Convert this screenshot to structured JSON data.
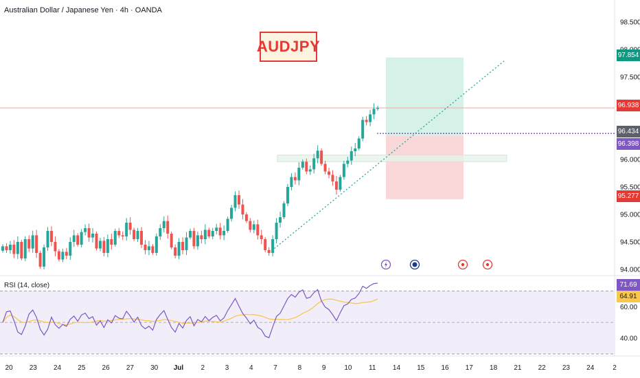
{
  "header": {
    "title": "Australian Dollar / Japanese Yen · 4h · OANDA"
  },
  "badge": {
    "text": "AUDJPY"
  },
  "indicator": {
    "label": "RSI (14, close)"
  },
  "price_tags": {
    "target": "97.854",
    "current": "96.938",
    "level1": "96.434",
    "level2": "96.398",
    "stop": "95.277"
  },
  "rsi_tags": {
    "rsi": "71.69",
    "ma": "64.91"
  },
  "colors": {
    "up": "#26a69a",
    "down": "#ef5350",
    "rsi_line": "#7e57c2",
    "rsi_ma": "#f9c74f",
    "profit_zone": "#d1efe5",
    "loss_zone": "#fad4d6",
    "trend_line": "#26a69a"
  },
  "chart_data": [
    {
      "type": "candlestick",
      "title": "Australian Dollar / Japanese Yen · 4h · OANDA",
      "x_axis_labels": [
        "20",
        "23",
        "24",
        "25",
        "26",
        "27",
        "30",
        "Jul",
        "2",
        "3",
        "4",
        "7",
        "8",
        "9",
        "10",
        "11",
        "14",
        "15",
        "16",
        "17",
        "18",
        "21",
        "22",
        "23",
        "24",
        "2"
      ],
      "y_ticks": [
        94.0,
        94.5,
        95.0,
        95.5,
        96.0,
        96.5,
        97.0,
        97.5,
        98.0,
        98.5
      ],
      "y_tick_labels": [
        "94.000",
        "94.500",
        "95.000",
        "95.500",
        "96.000",
        "96.500",
        "97.000",
        "97.500",
        "98.000",
        "98.500"
      ],
      "ylim": [
        93.9,
        98.65
      ],
      "closes": [
        94.42,
        94.35,
        94.45,
        94.28,
        94.5,
        94.2,
        94.55,
        94.38,
        94.62,
        94.3,
        94.05,
        94.4,
        94.7,
        94.5,
        94.33,
        94.18,
        94.32,
        94.25,
        94.5,
        94.62,
        94.45,
        94.68,
        94.75,
        94.58,
        94.65,
        94.38,
        94.52,
        94.3,
        94.55,
        94.45,
        94.7,
        94.62,
        94.6,
        94.85,
        94.72,
        94.55,
        94.7,
        94.45,
        94.35,
        94.42,
        94.3,
        94.6,
        94.75,
        94.88,
        94.65,
        94.4,
        94.25,
        94.5,
        94.35,
        94.58,
        94.7,
        94.42,
        94.62,
        94.55,
        94.72,
        94.6,
        94.7,
        94.76,
        94.62,
        94.7,
        94.92,
        95.12,
        95.35,
        95.18,
        95.0,
        94.88,
        94.72,
        94.82,
        94.62,
        94.55,
        94.35,
        94.3,
        94.55,
        94.85,
        94.95,
        95.2,
        95.5,
        95.68,
        95.62,
        95.85,
        95.96,
        95.78,
        95.82,
        96.02,
        96.16,
        95.92,
        95.78,
        95.72,
        95.6,
        95.45,
        95.68,
        95.92,
        95.98,
        96.15,
        96.2,
        96.38,
        96.72,
        96.68,
        96.82,
        96.92,
        96.938
      ],
      "trend_line": {
        "from_close": 94.3,
        "to": 97.8
      },
      "long_position": {
        "target": 97.854,
        "entry": 96.434,
        "stop": 95.277
      },
      "current_price": 96.938,
      "dotted_level": 96.398,
      "support_zone": [
        95.96,
        96.08
      ],
      "event_markers": [
        "lightning",
        "flag",
        "event",
        "event"
      ]
    },
    {
      "type": "line",
      "title": "RSI (14, close)",
      "y_ticks": [
        40.0,
        60.0
      ],
      "y_tick_labels": [
        "40.00",
        "60.00"
      ],
      "ylim": [
        30,
        78
      ],
      "band": [
        30,
        70
      ],
      "series": [
        {
          "name": "RSI",
          "last": 71.69
        },
        {
          "name": "MA",
          "last": 64.91
        }
      ]
    }
  ]
}
